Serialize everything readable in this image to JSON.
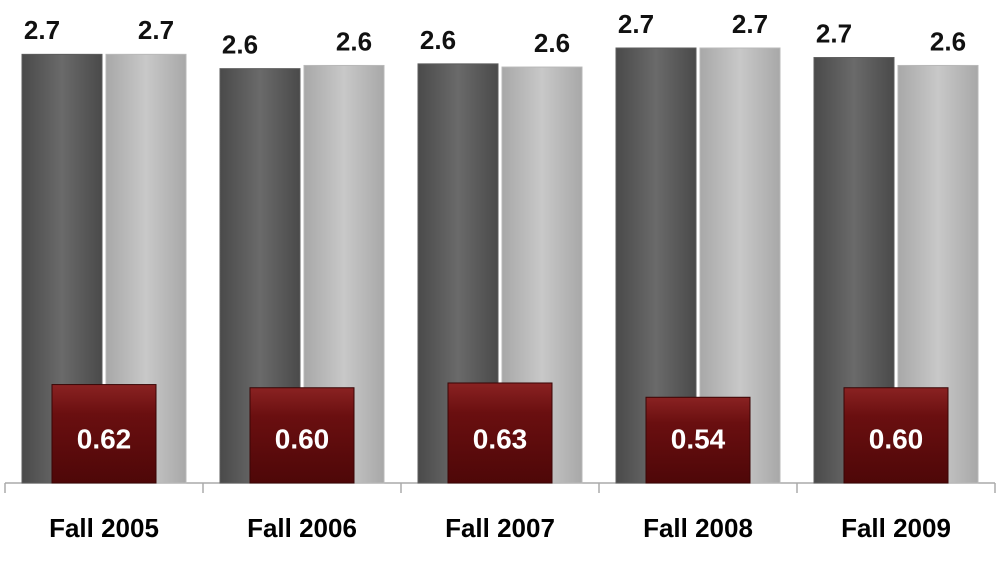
{
  "chart_data": {
    "type": "bar",
    "categories": [
      "Fall 2005",
      "Fall 2006",
      "Fall 2007",
      "Fall 2008",
      "Fall 2009"
    ],
    "series": [
      {
        "color": "#5c5c5c",
        "values": [
          2.7,
          2.61,
          2.64,
          2.74,
          2.68
        ],
        "value_labels": [
          "2.7",
          "2.6",
          "2.6",
          "2.7",
          "2.7"
        ]
      },
      {
        "color": "#b8b8b8",
        "values": [
          2.7,
          2.63,
          2.62,
          2.74,
          2.63
        ],
        "value_labels": [
          "2.7",
          "2.6",
          "2.6",
          "2.7",
          "2.6"
        ]
      },
      {
        "color": "#6a0f10",
        "values": [
          0.62,
          0.6,
          0.63,
          0.54,
          0.6
        ],
        "value_labels": [
          "0.62",
          "0.60",
          "0.63",
          "0.54",
          "0.60"
        ]
      }
    ]
  }
}
